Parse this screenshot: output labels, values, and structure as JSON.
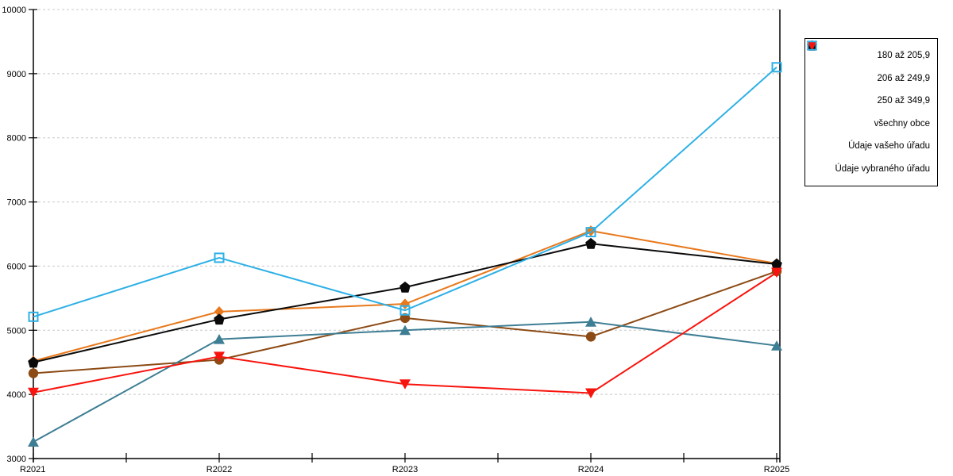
{
  "window": {
    "background": "#ffffff"
  },
  "chart_data": {
    "type": "line",
    "title": "",
    "xlabel": "",
    "ylabel": "",
    "x_categories": [
      "R2021",
      "R2022",
      "R2023",
      "R2024",
      "R2025"
    ],
    "yticks": [
      3000,
      4000,
      5000,
      6000,
      7000,
      8000,
      9000,
      10000
    ],
    "ylim": [
      3000,
      10000
    ],
    "grid": "horizontal-dashed",
    "legend_position": "right-outside",
    "series": [
      {
        "name": "180 až 205,9",
        "marker": "diamond",
        "color": "#E8791D",
        "values": [
          4520,
          5290,
          5410,
          6550,
          6040
        ]
      },
      {
        "name": "206 až 249,9",
        "marker": "circle",
        "color": "#8C4A14",
        "values": [
          4330,
          4540,
          5190,
          4900,
          5920
        ]
      },
      {
        "name": "250 až 349,9",
        "marker": "triangle-up",
        "color": "#3E7E94",
        "values": [
          3260,
          4860,
          5000,
          5130,
          4760
        ]
      },
      {
        "name": "všechny obce",
        "marker": "pentagon",
        "color": "#0A0A0A",
        "values": [
          4500,
          5170,
          5670,
          6350,
          6030
        ]
      },
      {
        "name": "Údaje vašeho úřadu",
        "marker": "triangle-down",
        "color": "#F8140E",
        "values": [
          4030,
          4590,
          4160,
          4020,
          5900
        ]
      },
      {
        "name": "Údaje vybraného úřadu",
        "marker": "square-open",
        "color": "#2EB0E6",
        "values": [
          5210,
          6130,
          5310,
          6530,
          9100
        ]
      }
    ]
  },
  "colors": {
    "grid": "#c8c8c8",
    "axis": "#000000",
    "legend_border": "#000000",
    "background": "#ffffff"
  }
}
